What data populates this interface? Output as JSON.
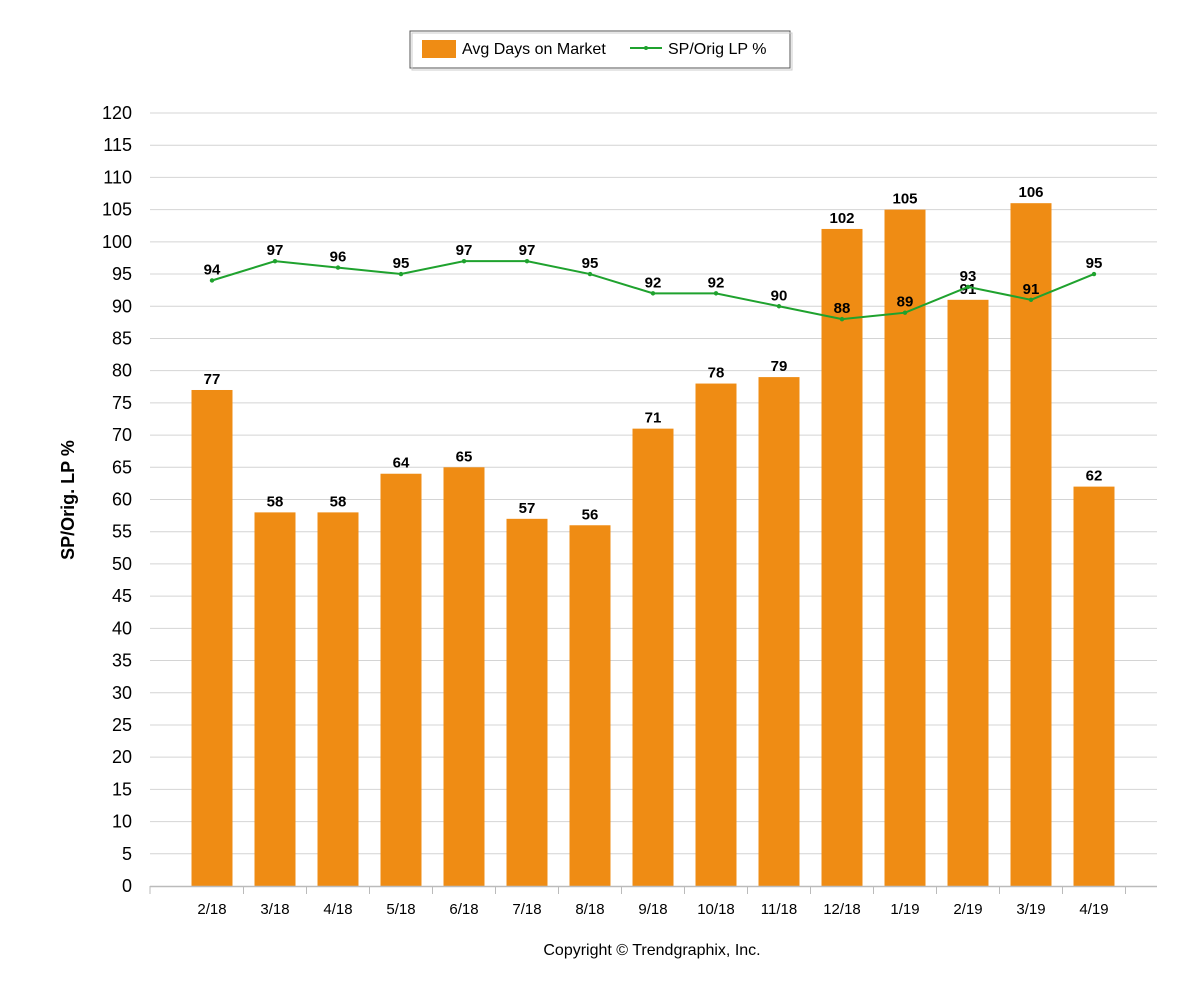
{
  "chart_data": {
    "type": "bar",
    "categories": [
      "2/18",
      "3/18",
      "4/18",
      "5/18",
      "6/18",
      "7/18",
      "8/18",
      "9/18",
      "10/18",
      "11/18",
      "12/18",
      "1/19",
      "2/19",
      "3/19",
      "4/19"
    ],
    "series": [
      {
        "name": "Avg Days on Market",
        "type": "bar",
        "color": "#EF8C14",
        "values": [
          77,
          58,
          58,
          64,
          65,
          57,
          56,
          71,
          78,
          79,
          102,
          105,
          91,
          106,
          62
        ]
      },
      {
        "name": "SP/Orig LP %",
        "type": "line",
        "color": "#1FA22E",
        "values": [
          94,
          97,
          96,
          95,
          97,
          97,
          95,
          92,
          92,
          90,
          88,
          89,
          93,
          91,
          95
        ]
      }
    ],
    "title": "",
    "xlabel": "",
    "ylabel": "SP/Orig. LP %",
    "ylim": [
      0,
      120
    ],
    "ytick_step": 5,
    "grid": true,
    "legend_position": "top-center"
  },
  "footer": {
    "copyright": "Copyright © Trendgraphix, Inc."
  }
}
